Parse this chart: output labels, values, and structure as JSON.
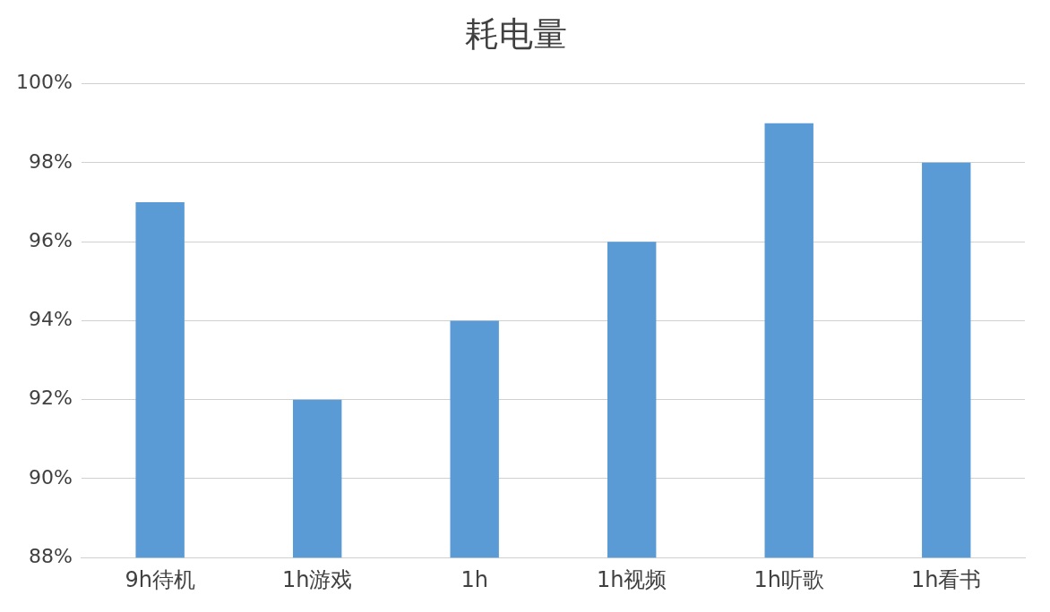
{
  "chart_data": {
    "type": "bar",
    "title": "耗电量",
    "categories": [
      "9h待机",
      "1h游戏",
      "1h",
      "1h视频",
      "1h听歌",
      "1h看书"
    ],
    "values": [
      97,
      92,
      94,
      96,
      99,
      98
    ],
    "color": "#5b9bd5",
    "ylim": [
      88,
      100
    ],
    "yticks": [
      {
        "value": 88,
        "label": "88%"
      },
      {
        "value": 90,
        "label": "90%"
      },
      {
        "value": 92,
        "label": "92%"
      },
      {
        "value": 94,
        "label": "94%"
      },
      {
        "value": 96,
        "label": "96%"
      },
      {
        "value": 98,
        "label": "98%"
      },
      {
        "value": 100,
        "label": "100%"
      }
    ],
    "grid": "y",
    "legend": false
  }
}
